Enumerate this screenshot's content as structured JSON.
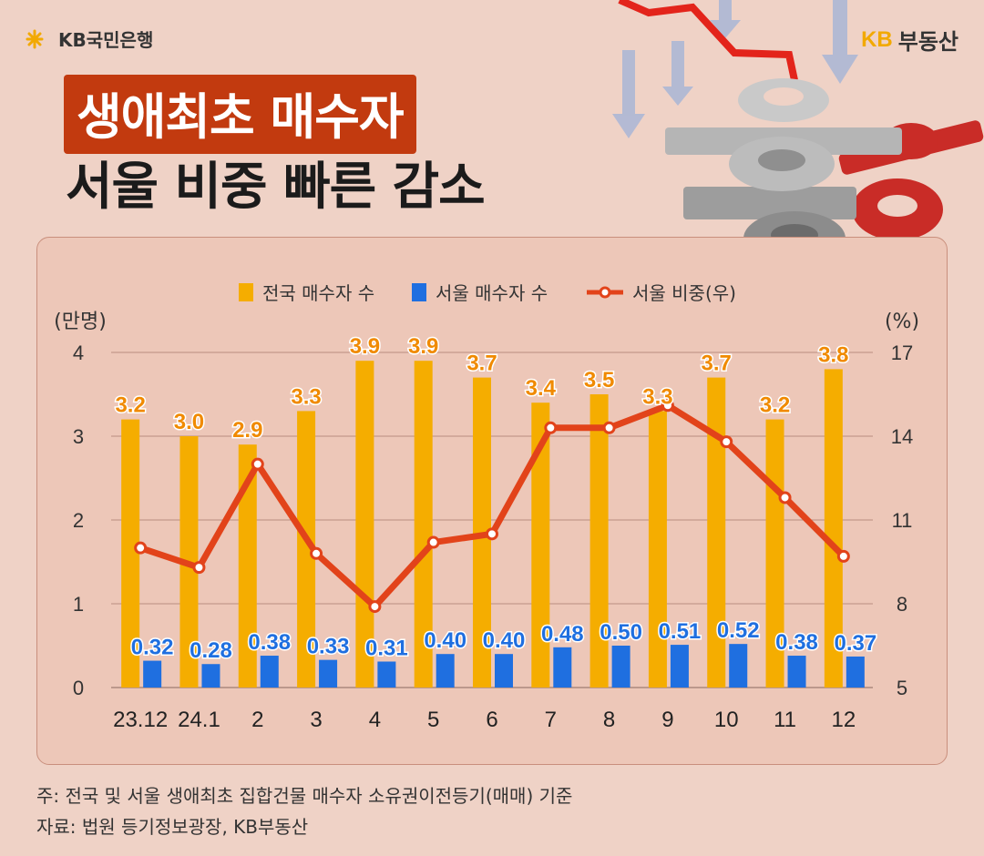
{
  "header": {
    "bank_logo_text": "KB국민은행",
    "brand_kb": "KB",
    "brand_name": "부동산",
    "title_line1": "생애최초 매수자",
    "title_line2": "서울 비중 빠른 감소"
  },
  "footer": {
    "note": "주: 전국 및 서울 생애최초 집합건물 매수자 소유권이전등기(매매) 기준",
    "source": "자료: 법원 등기정보광장, KB부동산"
  },
  "colors": {
    "background": "#efd2c6",
    "national_bar": "#f5ad00",
    "seoul_bar": "#1f6fe0",
    "seoul_share_line": "#e2431a",
    "title_box": "#c23a0f"
  },
  "chart_data": {
    "type": "bar",
    "categories": [
      "23.12",
      "24.1",
      "2",
      "3",
      "4",
      "5",
      "6",
      "7",
      "8",
      "9",
      "10",
      "11",
      "12"
    ],
    "series": [
      {
        "name": "전국 매수자 수",
        "type": "bar",
        "axis": "left",
        "values": [
          3.2,
          3.0,
          2.9,
          3.3,
          3.9,
          3.9,
          3.7,
          3.4,
          3.5,
          3.3,
          3.7,
          3.2,
          3.8
        ],
        "labels": [
          "3.2",
          "3.0",
          "2.9",
          "3.3",
          "3.9",
          "3.9",
          "3.7",
          "3.4",
          "3.5",
          "3.3",
          "3.7",
          "3.2",
          "3.8"
        ]
      },
      {
        "name": "서울 매수자 수",
        "type": "bar",
        "axis": "left",
        "values": [
          0.32,
          0.28,
          0.38,
          0.33,
          0.31,
          0.4,
          0.4,
          0.48,
          0.5,
          0.51,
          0.52,
          0.38,
          0.37
        ],
        "labels": [
          "0.32",
          "0.28",
          "0.38",
          "0.33",
          "0.31",
          "0.40",
          "0.40",
          "0.48",
          "0.50",
          "0.51",
          "0.52",
          "0.38",
          "0.37"
        ]
      },
      {
        "name": "서울 비중(우)",
        "type": "line",
        "axis": "right",
        "values": [
          10.0,
          9.3,
          13.0,
          9.8,
          7.9,
          10.2,
          10.5,
          14.3,
          14.3,
          15.1,
          13.8,
          11.8,
          9.7
        ]
      }
    ],
    "yleft": {
      "unit": "(만명)",
      "ticks": [
        "0",
        "1",
        "2",
        "3",
        "4"
      ],
      "ylim": [
        0,
        4
      ]
    },
    "yright": {
      "unit": "(%)",
      "ticks": [
        "5",
        "8",
        "11",
        "14",
        "17"
      ],
      "ylim": [
        5,
        17
      ]
    },
    "grid": true,
    "legend_position": "top-center"
  }
}
